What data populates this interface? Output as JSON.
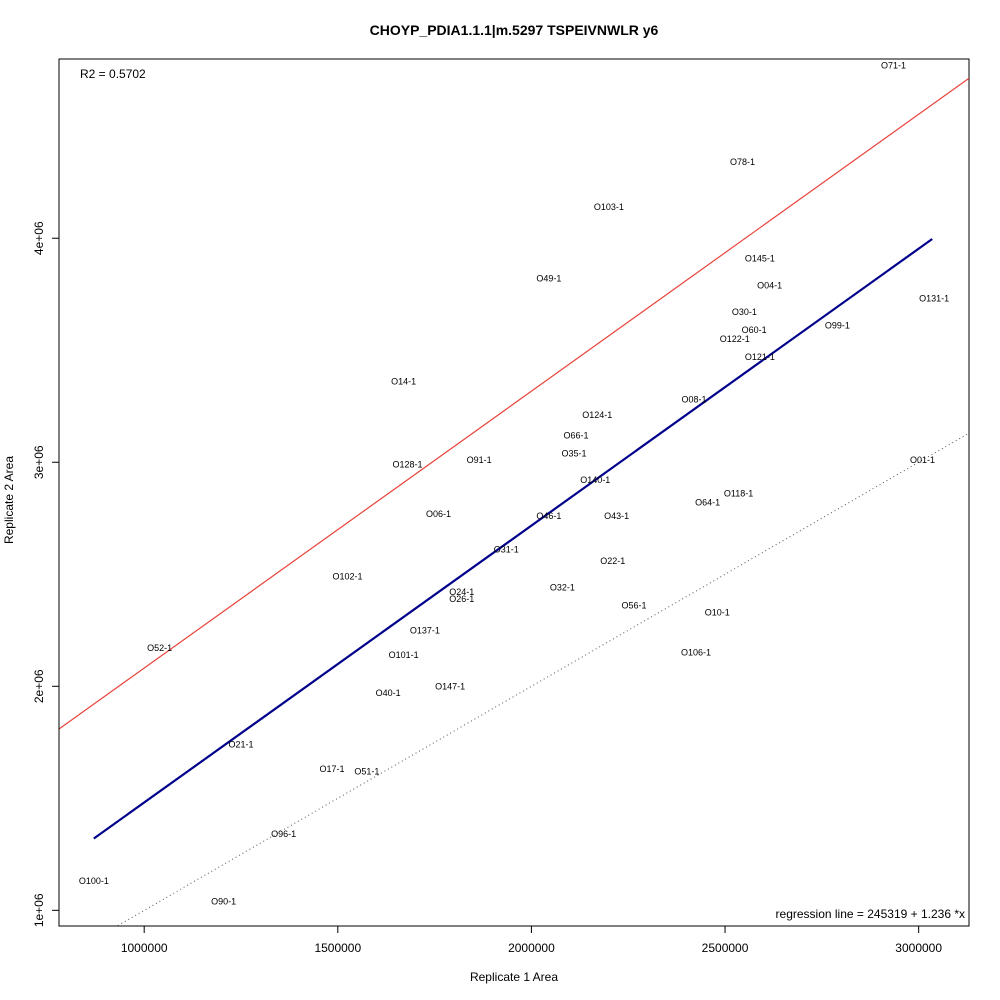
{
  "chart_data": {
    "type": "scatter",
    "title": "CHOYP_PDIA1.1.1|m.5297 TSPEIVNWLR y6",
    "xlabel": "Replicate 1 Area",
    "ylabel": "Replicate 2 Area",
    "xlim": [
      780000,
      3130000
    ],
    "ylim": [
      930000,
      4800000
    ],
    "x_ticks": [
      {
        "value": 1000000,
        "label": "1000000"
      },
      {
        "value": 1500000,
        "label": "1500000"
      },
      {
        "value": 2000000,
        "label": "2000000"
      },
      {
        "value": 2500000,
        "label": "2500000"
      },
      {
        "value": 3000000,
        "label": "3000000"
      }
    ],
    "y_ticks": [
      {
        "value": 1000000,
        "label": "1e+06"
      },
      {
        "value": 2000000,
        "label": "2e+06"
      },
      {
        "value": 3000000,
        "label": "3e+06"
      },
      {
        "value": 4000000,
        "label": "4e+06"
      }
    ],
    "r2_text": "R2 = 0.5702",
    "regression_text": "regression line = 245319 + 1.236 *x",
    "regression": {
      "intercept": 245319,
      "slope": 1.236,
      "x_range": [
        870000,
        3035000
      ],
      "color": "#00008b"
    },
    "upper_line": {
      "intercept": 245319,
      "slope": 1.236,
      "offset": 600000,
      "color": "#e8433a"
    },
    "identity_line": {
      "intercept": 0,
      "slope": 1,
      "color": "#555555",
      "style": "dotted"
    },
    "points": [
      {
        "label": "O71-1",
        "x": 2935000,
        "y": 4770000
      },
      {
        "label": "O78-1",
        "x": 2545000,
        "y": 4340000
      },
      {
        "label": "O103-1",
        "x": 2200000,
        "y": 4140000
      },
      {
        "label": "O145-1",
        "x": 2590000,
        "y": 3910000
      },
      {
        "label": "O49-1",
        "x": 2045000,
        "y": 3820000
      },
      {
        "label": "O04-1",
        "x": 2615000,
        "y": 3790000
      },
      {
        "label": "O131-1",
        "x": 3040000,
        "y": 3730000
      },
      {
        "label": "O30-1",
        "x": 2550000,
        "y": 3670000
      },
      {
        "label": "O99-1",
        "x": 2790000,
        "y": 3610000
      },
      {
        "label": "O60-1",
        "x": 2575000,
        "y": 3590000
      },
      {
        "label": "O122-1",
        "x": 2525000,
        "y": 3550000
      },
      {
        "label": "O121-1",
        "x": 2590000,
        "y": 3470000
      },
      {
        "label": "O14-1",
        "x": 1670000,
        "y": 3360000
      },
      {
        "label": "O08-1",
        "x": 2420000,
        "y": 3280000
      },
      {
        "label": "O124-1",
        "x": 2170000,
        "y": 3210000
      },
      {
        "label": "O66-1",
        "x": 2115000,
        "y": 3120000
      },
      {
        "label": "O35-1",
        "x": 2110000,
        "y": 3040000
      },
      {
        "label": "O91-1",
        "x": 1865000,
        "y": 3010000
      },
      {
        "label": "O128-1",
        "x": 1680000,
        "y": 2990000
      },
      {
        "label": "O01-1",
        "x": 3010000,
        "y": 3010000
      },
      {
        "label": "O140-1",
        "x": 2165000,
        "y": 2920000
      },
      {
        "label": "O118-1",
        "x": 2535000,
        "y": 2860000
      },
      {
        "label": "O64-1",
        "x": 2455000,
        "y": 2820000
      },
      {
        "label": "O06-1",
        "x": 1760000,
        "y": 2770000
      },
      {
        "label": "O46-1",
        "x": 2045000,
        "y": 2760000
      },
      {
        "label": "O43-1",
        "x": 2220000,
        "y": 2760000
      },
      {
        "label": "O31-1",
        "x": 1935000,
        "y": 2610000
      },
      {
        "label": "O22-1",
        "x": 2210000,
        "y": 2560000
      },
      {
        "label": "O102-1",
        "x": 1525000,
        "y": 2490000
      },
      {
        "label": "O32-1",
        "x": 2080000,
        "y": 2440000
      },
      {
        "label": "O24-1",
        "x": 1820000,
        "y": 2420000
      },
      {
        "label": "O26-1",
        "x": 1820000,
        "y": 2390000
      },
      {
        "label": "O56-1",
        "x": 2265000,
        "y": 2360000
      },
      {
        "label": "O10-1",
        "x": 2480000,
        "y": 2330000
      },
      {
        "label": "O137-1",
        "x": 1725000,
        "y": 2250000
      },
      {
        "label": "O52-1",
        "x": 1040000,
        "y": 2170000
      },
      {
        "label": "O101-1",
        "x": 1670000,
        "y": 2140000
      },
      {
        "label": "O106-1",
        "x": 2425000,
        "y": 2150000
      },
      {
        "label": "O147-1",
        "x": 1790000,
        "y": 2000000
      },
      {
        "label": "O40-1",
        "x": 1630000,
        "y": 1970000
      },
      {
        "label": "O21-1",
        "x": 1250000,
        "y": 1740000
      },
      {
        "label": "O17-1",
        "x": 1485000,
        "y": 1630000
      },
      {
        "label": "O51-1",
        "x": 1575000,
        "y": 1620000
      },
      {
        "label": "O96-1",
        "x": 1360000,
        "y": 1340000
      },
      {
        "label": "O100-1",
        "x": 870000,
        "y": 1130000
      },
      {
        "label": "O90-1",
        "x": 1205000,
        "y": 1040000
      }
    ]
  }
}
